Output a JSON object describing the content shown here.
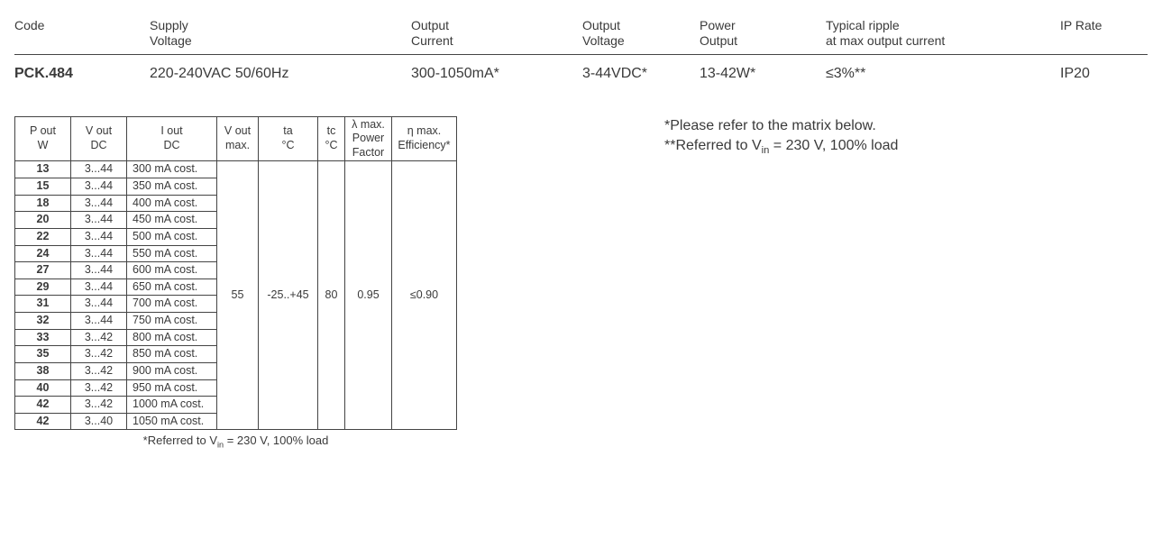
{
  "spec_headers": {
    "code": "Code",
    "supply_l1": "Supply",
    "supply_l2": "Voltage",
    "current_l1": "Output",
    "current_l2": "Current",
    "voltage_l1": "Output",
    "voltage_l2": "Voltage",
    "power_l1": "Power",
    "power_l2": "Output",
    "ripple_l1": "Typical ripple",
    "ripple_l2": "at max output current",
    "ip": "IP Rate"
  },
  "spec_row": {
    "code": "PCK.484",
    "supply": "220-240VAC 50/60Hz",
    "current": "300-1050mA*",
    "voltage": "3-44VDC*",
    "power": "13-42W*",
    "ripple": "≤3%**",
    "ip": "IP20"
  },
  "matrix": {
    "headers": {
      "pw_l1": "P out",
      "pw_l2": "W",
      "vdc_l1": "V out",
      "vdc_l2": "DC",
      "idc_l1": "I out",
      "idc_l2": "DC",
      "vom_l1": "V out",
      "vom_l2": "max.",
      "ta_l1": "ta",
      "ta_l2": "°C",
      "tc_l1": "tc",
      "tc_l2": "°C",
      "pf_l1": "λ max.",
      "pf_l2": "Power",
      "pf_l3": "Factor",
      "eff_l1": "η max.",
      "eff_l2": "Efficiency*"
    },
    "rows": [
      {
        "pw": "13",
        "vdc": "3...44",
        "idc": "300 mA cost."
      },
      {
        "pw": "15",
        "vdc": "3...44",
        "idc": "350 mA cost."
      },
      {
        "pw": "18",
        "vdc": "3...44",
        "idc": "400 mA cost."
      },
      {
        "pw": "20",
        "vdc": "3...44",
        "idc": "450 mA cost."
      },
      {
        "pw": "22",
        "vdc": "3...44",
        "idc": "500 mA cost."
      },
      {
        "pw": "24",
        "vdc": "3...44",
        "idc": "550 mA cost."
      },
      {
        "pw": "27",
        "vdc": "3...44",
        "idc": "600 mA cost."
      },
      {
        "pw": "29",
        "vdc": "3...44",
        "idc": "650 mA cost."
      },
      {
        "pw": "31",
        "vdc": "3...44",
        "idc": "700 mA cost."
      },
      {
        "pw": "32",
        "vdc": "3...44",
        "idc": "750 mA cost."
      },
      {
        "pw": "33",
        "vdc": "3...42",
        "idc": "800 mA cost."
      },
      {
        "pw": "35",
        "vdc": "3...42",
        "idc": "850 mA cost."
      },
      {
        "pw": "38",
        "vdc": "3...42",
        "idc": "900 mA cost."
      },
      {
        "pw": "40",
        "vdc": "3...42",
        "idc": "950 mA cost."
      },
      {
        "pw": "42",
        "vdc": "3...42",
        "idc": "1000 mA cost."
      },
      {
        "pw": "42",
        "vdc": "3...40",
        "idc": "1050 mA cost."
      }
    ],
    "shared": {
      "vom": "55",
      "ta": "-25..+45",
      "tc": "80",
      "pf": "0.95",
      "eff": "≤0.90"
    },
    "footnote_label": "*Referred to V",
    "footnote_sub": "in",
    "footnote_tail": " = 230 V, 100% load"
  },
  "side_notes": {
    "line1": "*Please refer to the matrix below.",
    "line2_a": "**Referred to V",
    "line2_sub": "in",
    "line2_b": " = 230 V, 100% load"
  },
  "colors": {
    "text": "#3a3a3a",
    "border": "#444444",
    "background": "#ffffff"
  }
}
